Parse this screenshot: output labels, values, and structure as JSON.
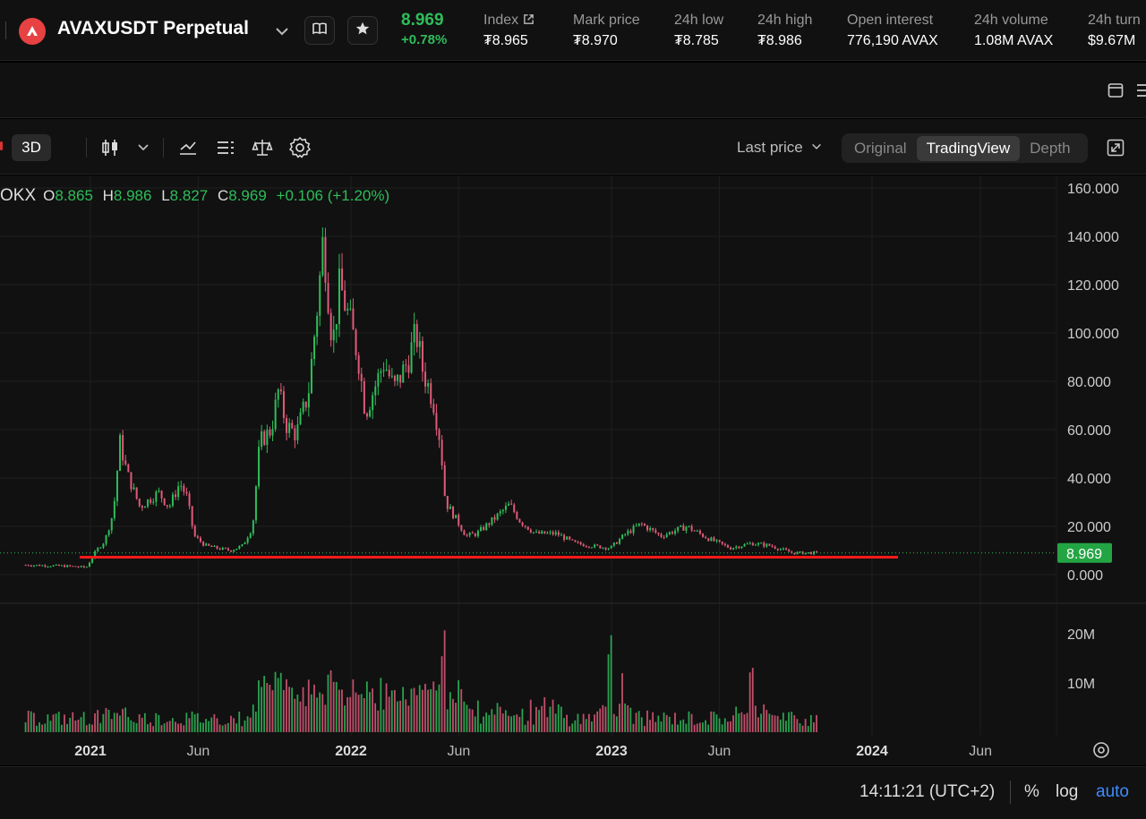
{
  "header": {
    "symbol": "AVAXUSDT Perpetual",
    "last_price": "8.969",
    "change_pct": "+0.78%",
    "stats": [
      {
        "label": "Index",
        "value": "₮8.965"
      },
      {
        "label": "Mark price",
        "value": "₮8.970"
      },
      {
        "label": "24h low",
        "value": "₮8.785"
      },
      {
        "label": "24h high",
        "value": "₮8.986"
      },
      {
        "label": "Open interest",
        "value": "776,190 AVAX"
      },
      {
        "label": "24h volume",
        "value": "1.08M AVAX"
      },
      {
        "label": "24h turn",
        "value": "$9.67M"
      }
    ]
  },
  "toolbar": {
    "timeframe": "3D",
    "price_type": "Last price",
    "views": [
      "Original",
      "TradingView",
      "Depth"
    ],
    "active_view": "TradingView"
  },
  "ohlc": {
    "exchange": "OKX",
    "o_label": "O",
    "o": "8.865",
    "h_label": "H",
    "h": "8.986",
    "l_label": "L",
    "l": "8.827",
    "c_label": "C",
    "c": "8.969",
    "change": "+0.106 (+1.20%)"
  },
  "footer": {
    "time": "14:11:21 (UTC+2)",
    "pct": "%",
    "log": "log",
    "auto": "auto"
  },
  "colors": {
    "up": "#2ebd5a",
    "down": "#e05a7a",
    "support_line": "#ff1a1a",
    "accent": "#3d8bff"
  },
  "chart_data": {
    "type": "candlestick",
    "y_ticks": [
      "160.000",
      "140.000",
      "120.000",
      "100.000",
      "80.000",
      "60.000",
      "40.000",
      "20.000",
      "0.000"
    ],
    "volume_ticks": [
      "20M",
      "10M"
    ],
    "x_ticks": [
      {
        "label": "2021",
        "major": true
      },
      {
        "label": "Jun",
        "major": false
      },
      {
        "label": "2022",
        "major": true
      },
      {
        "label": "Jun",
        "major": false
      },
      {
        "label": "2023",
        "major": true
      },
      {
        "label": "Jun",
        "major": false
      },
      {
        "label": "2024",
        "major": true
      },
      {
        "label": "Jun",
        "major": false
      }
    ],
    "ylim": [
      0,
      160
    ],
    "current_price_label": "8.969",
    "current_price": 8.969,
    "support_level": 7.2,
    "price_path": [
      [
        "2020-10-01",
        4
      ],
      [
        "2020-12-01",
        3.5
      ],
      [
        "2020-12-25",
        3
      ],
      [
        "2021-01-08",
        10
      ],
      [
        "2021-01-20",
        14
      ],
      [
        "2021-02-01",
        26
      ],
      [
        "2021-02-10",
        55
      ],
      [
        "2021-02-20",
        42
      ],
      [
        "2021-03-10",
        28
      ],
      [
        "2021-04-05",
        34
      ],
      [
        "2021-04-20",
        28
      ],
      [
        "2021-05-05",
        38
      ],
      [
        "2021-05-15",
        32
      ],
      [
        "2021-05-25",
        16
      ],
      [
        "2021-06-10",
        12
      ],
      [
        "2021-06-25",
        11
      ],
      [
        "2021-07-15",
        10
      ],
      [
        "2021-08-01",
        12
      ],
      [
        "2021-08-15",
        20
      ],
      [
        "2021-08-25",
        55
      ],
      [
        "2021-09-10",
        60
      ],
      [
        "2021-09-20",
        76
      ],
      [
        "2021-10-01",
        62
      ],
      [
        "2021-10-15",
        58
      ],
      [
        "2021-11-01",
        75
      ],
      [
        "2021-11-15",
        115
      ],
      [
        "2021-11-22",
        140
      ],
      [
        "2021-12-05",
        95
      ],
      [
        "2021-12-15",
        120
      ],
      [
        "2021-12-28",
        106
      ],
      [
        "2022-01-10",
        90
      ],
      [
        "2022-01-20",
        67
      ],
      [
        "2022-02-05",
        80
      ],
      [
        "2022-02-15",
        88
      ],
      [
        "2022-03-01",
        77
      ],
      [
        "2022-03-10",
        82
      ],
      [
        "2022-03-20",
        88
      ],
      [
        "2022-04-01",
        100
      ],
      [
        "2022-04-10",
        85
      ],
      [
        "2022-04-25",
        72
      ],
      [
        "2022-05-05",
        55
      ],
      [
        "2022-05-12",
        30
      ],
      [
        "2022-05-25",
        24
      ],
      [
        "2022-06-10",
        16
      ],
      [
        "2022-06-25",
        17
      ],
      [
        "2022-07-15",
        22
      ],
      [
        "2022-08-10",
        29
      ],
      [
        "2022-08-25",
        22
      ],
      [
        "2022-09-15",
        17
      ],
      [
        "2022-10-15",
        17
      ],
      [
        "2022-11-09",
        13
      ],
      [
        "2022-12-01",
        12
      ],
      [
        "2022-12-29",
        11
      ],
      [
        "2023-01-20",
        17
      ],
      [
        "2023-02-10",
        21
      ],
      [
        "2023-03-10",
        16
      ],
      [
        "2023-04-15",
        20
      ],
      [
        "2023-05-15",
        15
      ],
      [
        "2023-06-15",
        11
      ],
      [
        "2023-07-15",
        13
      ],
      [
        "2023-08-10",
        12
      ],
      [
        "2023-09-10",
        9
      ],
      [
        "2023-10-15",
        9
      ]
    ],
    "volume_peaks": [
      [
        "2021-02-01",
        3
      ],
      [
        "2021-09-01",
        11
      ],
      [
        "2021-09-15",
        14
      ],
      [
        "2021-11-20",
        9
      ],
      [
        "2022-05-10",
        23
      ],
      [
        "2022-06-01",
        13
      ],
      [
        "2022-12-29",
        23
      ],
      [
        "2023-01-15",
        12
      ],
      [
        "2023-07-15",
        17
      ]
    ],
    "volume_time_range": [
      "2020-10-01",
      "2023-10-15"
    ]
  }
}
